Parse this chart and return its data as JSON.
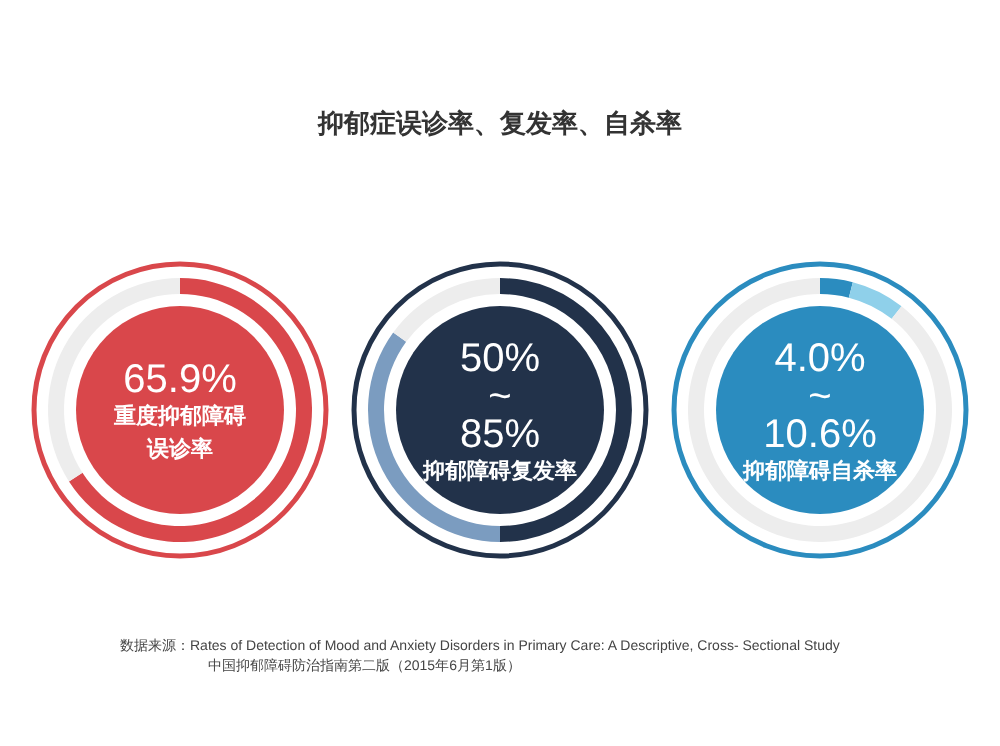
{
  "chart_data": [
    {
      "type": "other",
      "title": "抑郁症误诊率、复发率、自杀率"
    },
    {
      "type": "donut",
      "categories": [
        null,
        null
      ],
      "values": [
        65.9,
        34.1
      ],
      "colors": [
        "#d9474b",
        "#ededed"
      ],
      "annotations": [
        "65.9%",
        "重度抑郁障碍",
        "误诊率"
      ]
    },
    {
      "type": "donut",
      "categories": [
        null,
        null,
        null
      ],
      "values": [
        50,
        35,
        15
      ],
      "colors": [
        "#22324a",
        "#7b9cc0",
        "#ededed"
      ],
      "annotations": [
        "50%",
        "~",
        "85%",
        "抑郁障碍复发率"
      ]
    },
    {
      "type": "donut",
      "categories": [
        null,
        null,
        null
      ],
      "values": [
        4.0,
        6.6,
        89.4
      ],
      "colors": [
        "#2b8cbf",
        "#8fd0ea",
        "#ededed"
      ],
      "annotations": [
        "4.0%",
        "~",
        "10.6%",
        "抑郁障碍自杀率"
      ]
    },
    {
      "type": "other",
      "annotations": [
        "数据来源：Rates of Detection of Mood and Anxiety Disorders in Primary Care: A Descriptive, Cross- Sectional Study",
        "中国抑郁障碍防治指南第二版（2015年6月第1版）"
      ]
    }
  ]
}
